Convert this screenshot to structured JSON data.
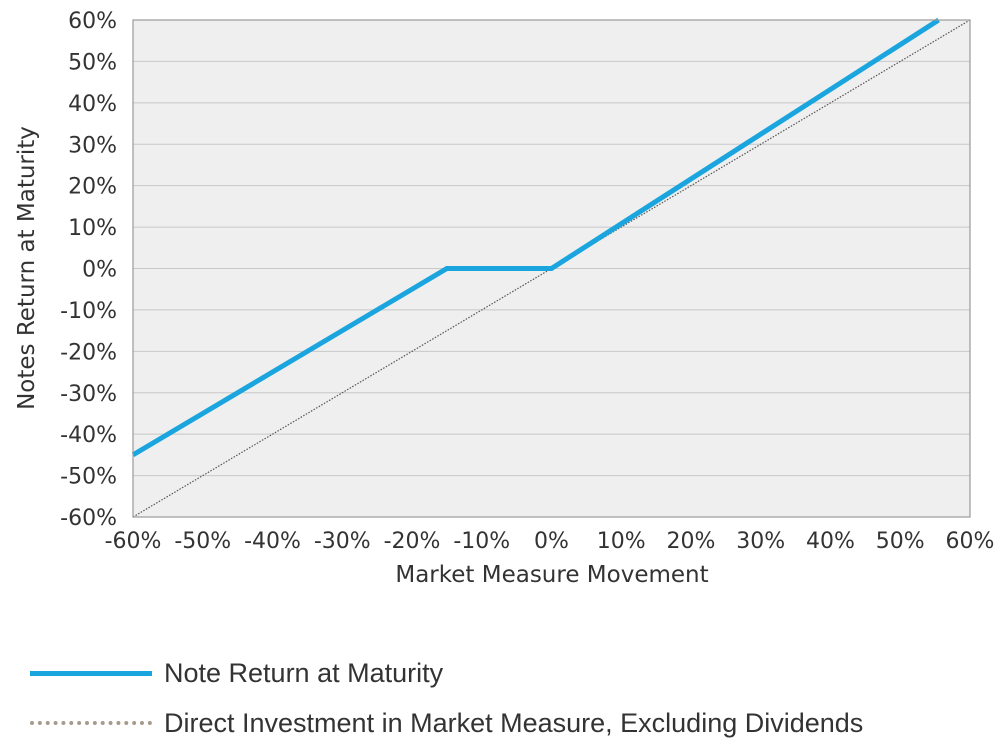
{
  "chart_data": {
    "type": "line",
    "xlabel": "Market Measure Movement",
    "ylabel": "Notes Return at Maturity",
    "xlim": [
      -60,
      60
    ],
    "ylim": [
      -60,
      60
    ],
    "x_ticks": [
      "-60%",
      "-50%",
      "-40%",
      "-30%",
      "-20%",
      "-10%",
      "0%",
      "10%",
      "20%",
      "30%",
      "40%",
      "50%",
      "60%"
    ],
    "y_ticks": [
      "60%",
      "50%",
      "40%",
      "30%",
      "20%",
      "10%",
      "0%",
      "-10%",
      "-20%",
      "-30%",
      "-40%",
      "-50%",
      "-60%"
    ],
    "grid": "horizontal",
    "series": [
      {
        "name": "Note Return at Maturity",
        "color": "#1aa5df",
        "style": "solid",
        "x": [
          -60,
          -15,
          0,
          55.5
        ],
        "y": [
          -45,
          0,
          0,
          61
        ]
      },
      {
        "name": "Direct Investment in Market Measure, Excluding Dividends",
        "color": "#555555",
        "style": "dotted",
        "x": [
          -60,
          60
        ],
        "y": [
          -60,
          60
        ]
      }
    ]
  },
  "legend": {
    "items": [
      {
        "label": "Note Return at Maturity",
        "style": "solid",
        "color": "#1aa5df"
      },
      {
        "label": "Direct Investment in Market Measure, Excluding Dividends",
        "style": "dotted",
        "color": "#a89a8c"
      }
    ]
  }
}
